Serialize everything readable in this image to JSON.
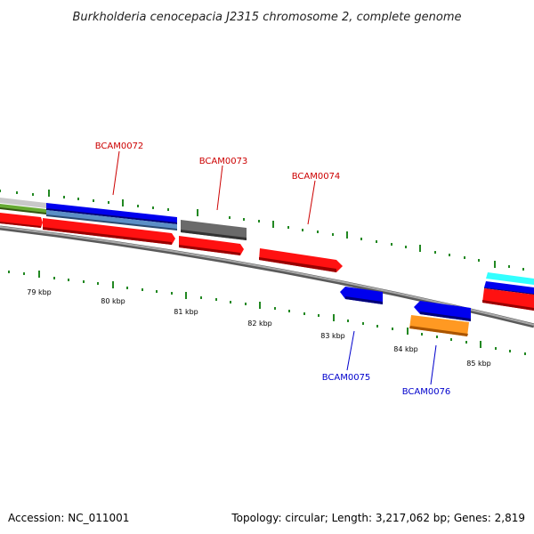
{
  "title": "Burkholderia cenocepacia J2315 chromosome 2, complete genome",
  "footer": {
    "accession": "Accession: NC_011001",
    "summary": "Topology: circular; Length: 3,217,062 bp; Genes: 2,819"
  },
  "scale_labels": [
    "79 kbp",
    "80 kbp",
    "81 kbp",
    "82 kbp",
    "83 kbp",
    "84 kbp",
    "85 kbp"
  ],
  "gene_labels": [
    {
      "id": "BCAM0072",
      "strand": "forward"
    },
    {
      "id": "BCAM0073",
      "strand": "forward"
    },
    {
      "id": "BCAM0074",
      "strand": "forward"
    },
    {
      "id": "BCAM0075",
      "strand": "reverse"
    },
    {
      "id": "BCAM0076",
      "strand": "reverse"
    }
  ],
  "colors": {
    "forward_label": "#cc0000",
    "reverse_label": "#0000cc",
    "cds": "#ff0000",
    "blue_feature": "#0000dd",
    "grey_feature": "#666666",
    "orange_feature": "#ff9900",
    "cyan_feature": "#33ffff",
    "steel_feature": "#5588bb",
    "green_feature": "#559922",
    "tick": "#228822",
    "backbone": "#888888"
  }
}
